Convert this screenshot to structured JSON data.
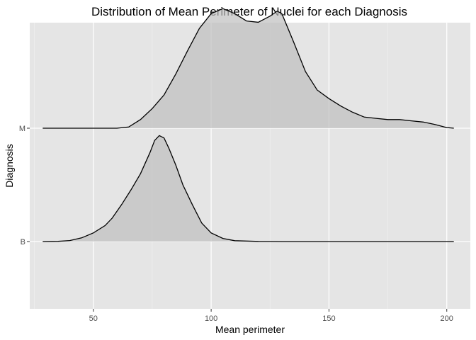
{
  "chart_data": {
    "type": "ridgeline-density",
    "title": "Distribution of Mean Perimeter of Nuclei for each Diagnosis",
    "xlabel": "Mean perimeter",
    "ylabel": "Diagnosis",
    "xlim": [
      23,
      210
    ],
    "x_ticks": [
      50,
      100,
      150,
      200
    ],
    "x_minor_ticks": [
      25,
      75,
      125,
      175
    ],
    "grid": true,
    "panel_background": "#e5e5e5",
    "fill_color": "#bfbfbf",
    "line_color": "#000000",
    "categories": [
      "B",
      "M"
    ],
    "series": [
      {
        "name": "B",
        "points": [
          [
            28.5,
            0.0
          ],
          [
            35,
            0.002
          ],
          [
            40,
            0.008
          ],
          [
            45,
            0.03
          ],
          [
            50,
            0.07
          ],
          [
            55,
            0.13
          ],
          [
            58,
            0.19
          ],
          [
            62,
            0.3
          ],
          [
            66,
            0.42
          ],
          [
            70,
            0.55
          ],
          [
            74,
            0.72
          ],
          [
            76,
            0.82
          ],
          [
            78,
            0.86
          ],
          [
            80,
            0.84
          ],
          [
            82,
            0.76
          ],
          [
            85,
            0.62
          ],
          [
            88,
            0.46
          ],
          [
            92,
            0.3
          ],
          [
            96,
            0.15
          ],
          [
            100,
            0.07
          ],
          [
            105,
            0.025
          ],
          [
            110,
            0.007
          ],
          [
            120,
            0.001
          ],
          [
            130,
            0.0
          ],
          [
            203,
            0.0
          ]
        ]
      },
      {
        "name": "M",
        "points": [
          [
            28.5,
            0.0
          ],
          [
            50,
            0.0
          ],
          [
            60,
            0.0
          ],
          [
            65,
            0.01
          ],
          [
            70,
            0.07
          ],
          [
            75,
            0.16
          ],
          [
            80,
            0.27
          ],
          [
            85,
            0.44
          ],
          [
            90,
            0.63
          ],
          [
            95,
            0.81
          ],
          [
            100,
            0.93
          ],
          [
            105,
            0.97
          ],
          [
            110,
            0.93
          ],
          [
            115,
            0.87
          ],
          [
            120,
            0.86
          ],
          [
            125,
            0.91
          ],
          [
            128,
            0.95
          ],
          [
            130,
            0.93
          ],
          [
            135,
            0.7
          ],
          [
            140,
            0.46
          ],
          [
            145,
            0.31
          ],
          [
            150,
            0.24
          ],
          [
            155,
            0.18
          ],
          [
            160,
            0.13
          ],
          [
            165,
            0.09
          ],
          [
            170,
            0.08
          ],
          [
            175,
            0.07
          ],
          [
            180,
            0.07
          ],
          [
            185,
            0.06
          ],
          [
            190,
            0.05
          ],
          [
            195,
            0.03
          ],
          [
            200,
            0.005
          ],
          [
            203,
            0.0
          ]
        ]
      }
    ]
  }
}
